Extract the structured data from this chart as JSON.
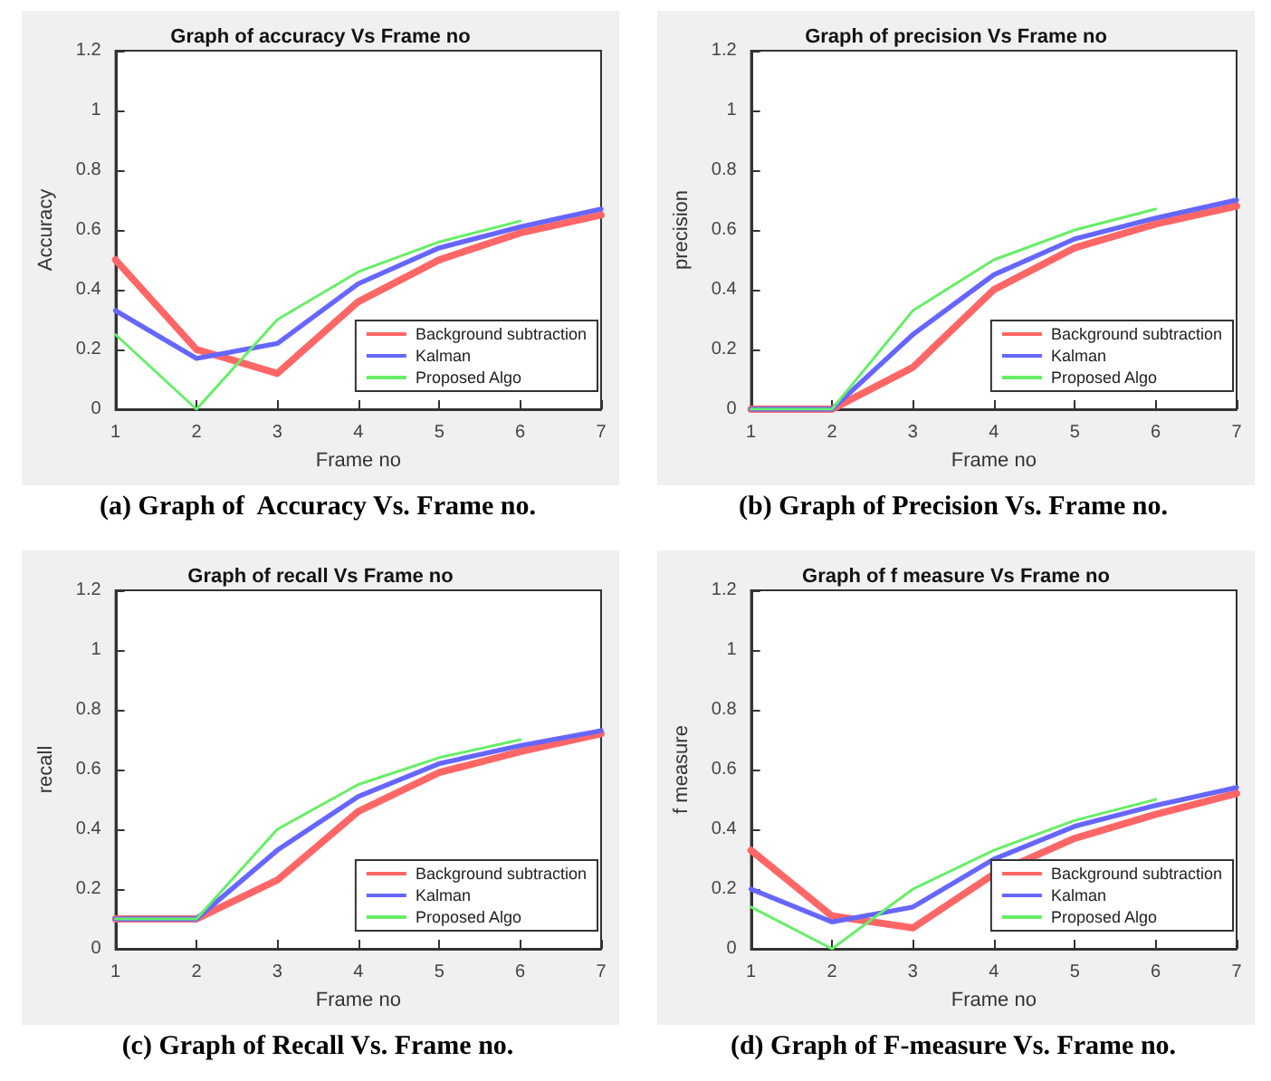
{
  "chart_data": [
    {
      "type": "line",
      "title": "Graph of accuracy Vs Frame no",
      "xlabel": "Frame no",
      "ylabel": "Accuracy",
      "x": [
        1,
        2,
        3,
        4,
        5,
        6,
        7
      ],
      "xlim": [
        1,
        7
      ],
      "xticks": [
        1,
        2,
        3,
        4,
        5,
        6,
        7
      ],
      "ylim": [
        0,
        1.2
      ],
      "yticks": [
        0,
        0.2,
        0.4,
        0.6,
        0.8,
        1,
        1.2
      ],
      "grid": false,
      "legend": "bottom right",
      "marker": "none",
      "line_style": "solid",
      "annotations": [
        "(a) Graph of  Accuracy Vs. Frame no."
      ],
      "series": [
        {
          "name": "Background subtraction",
          "color": "#ff6666",
          "values": [
            0.5,
            0.2,
            0.12,
            0.36,
            0.5,
            0.59,
            0.65
          ]
        },
        {
          "name": "Kalman",
          "color": "#6666ff",
          "values": [
            0.33,
            0.17,
            0.22,
            0.42,
            0.54,
            0.61,
            0.67
          ]
        },
        {
          "name": "Proposed Algo",
          "color": "#66ee66",
          "values": [
            0.25,
            0,
            0.3,
            0.46,
            0.56,
            0.63,
            null
          ]
        }
      ]
    },
    {
      "type": "line",
      "title": "Graph of precision Vs Frame no",
      "xlabel": "Frame no",
      "ylabel": "precision",
      "x": [
        1,
        2,
        3,
        4,
        5,
        6,
        7
      ],
      "xlim": [
        1,
        7
      ],
      "xticks": [
        1,
        2,
        3,
        4,
        5,
        6,
        7
      ],
      "ylim": [
        0,
        1.2
      ],
      "yticks": [
        0,
        0.2,
        0.4,
        0.6,
        0.8,
        1,
        1.2
      ],
      "grid": false,
      "legend": "bottom right",
      "marker": "none",
      "line_style": "solid",
      "annotations": [
        "(b) Graph of Precision Vs. Frame no."
      ],
      "series": [
        {
          "name": "Background subtraction",
          "color": "#ff6666",
          "values": [
            0,
            0,
            0.14,
            0.4,
            0.54,
            0.62,
            0.68
          ]
        },
        {
          "name": "Kalman",
          "color": "#6666ff",
          "values": [
            0,
            0,
            0.25,
            0.45,
            0.57,
            0.64,
            0.7
          ]
        },
        {
          "name": "Proposed Algo",
          "color": "#66ee66",
          "values": [
            0,
            0,
            0.33,
            0.5,
            0.6,
            0.67,
            null
          ]
        }
      ]
    },
    {
      "type": "line",
      "title": "Graph of recall Vs Frame no",
      "xlabel": "Frame no",
      "ylabel": "recall",
      "x": [
        1,
        2,
        3,
        4,
        5,
        6,
        7
      ],
      "xlim": [
        1,
        7
      ],
      "xticks": [
        1,
        2,
        3,
        4,
        5,
        6,
        7
      ],
      "ylim": [
        0,
        1.2
      ],
      "yticks": [
        0,
        0.2,
        0.4,
        0.6,
        0.8,
        1,
        1.2
      ],
      "grid": false,
      "legend": "bottom right",
      "marker": "none",
      "line_style": "solid",
      "annotations": [
        "(c) Graph of Recall Vs. Frame no."
      ],
      "series": [
        {
          "name": "Background subtraction",
          "color": "#ff6666",
          "values": [
            0.1,
            0.1,
            0.23,
            0.46,
            0.59,
            0.66,
            0.72
          ]
        },
        {
          "name": "Kalman",
          "color": "#6666ff",
          "values": [
            0.1,
            0.1,
            0.33,
            0.51,
            0.62,
            0.68,
            0.73
          ]
        },
        {
          "name": "Proposed Algo",
          "color": "#66ee66",
          "values": [
            0.1,
            0.1,
            0.4,
            0.55,
            0.64,
            0.7,
            null
          ]
        }
      ]
    },
    {
      "type": "line",
      "title": "Graph of f measure Vs Frame no",
      "xlabel": "Frame no",
      "ylabel": "f measure",
      "x": [
        1,
        2,
        3,
        4,
        5,
        6,
        7
      ],
      "xlim": [
        1,
        7
      ],
      "xticks": [
        1,
        2,
        3,
        4,
        5,
        6,
        7
      ],
      "ylim": [
        0,
        1.2
      ],
      "yticks": [
        0,
        0.2,
        0.4,
        0.6,
        0.8,
        1,
        1.2
      ],
      "grid": false,
      "legend": "bottom right",
      "marker": "none",
      "line_style": "solid",
      "annotations": [
        "(d) Graph of F-measure Vs. Frame no."
      ],
      "series": [
        {
          "name": "Background subtraction",
          "color": "#ff6666",
          "values": [
            0.33,
            0.11,
            0.07,
            0.25,
            0.37,
            0.45,
            0.52
          ]
        },
        {
          "name": "Kalman",
          "color": "#6666ff",
          "values": [
            0.2,
            0.09,
            0.14,
            0.3,
            0.41,
            0.48,
            0.54
          ]
        },
        {
          "name": "Proposed Algo",
          "color": "#66ee66",
          "values": [
            0.14,
            0,
            0.2,
            0.33,
            0.43,
            0.5,
            null
          ]
        }
      ]
    }
  ]
}
